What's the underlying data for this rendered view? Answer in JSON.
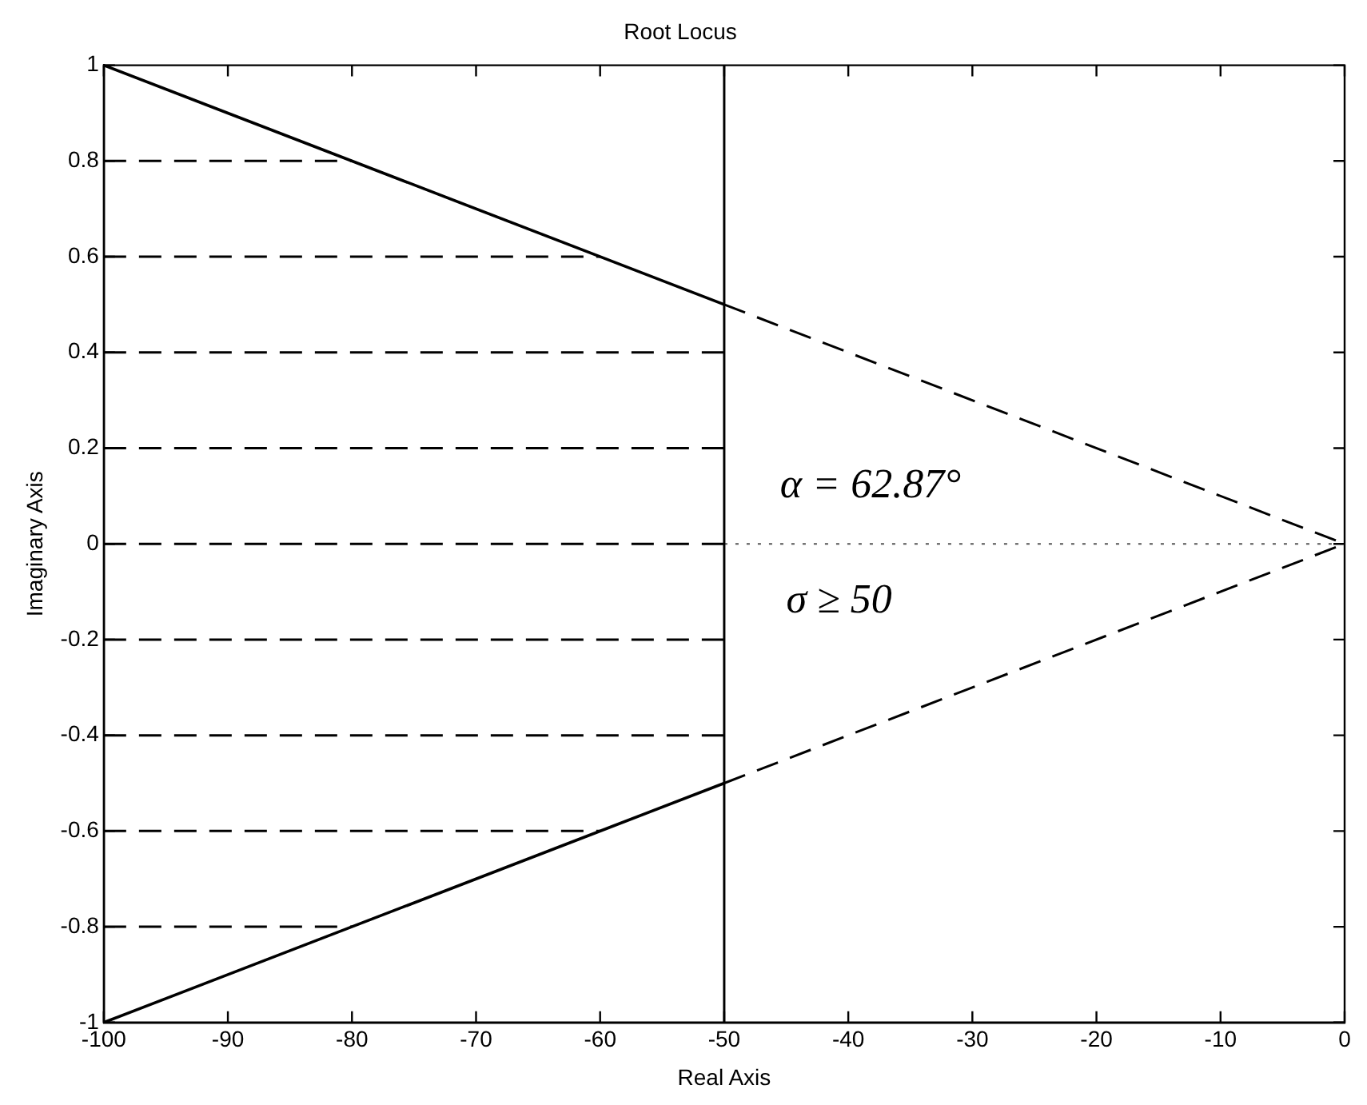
{
  "chart_data": {
    "type": "line",
    "title": "Root Locus",
    "xlabel": "Real Axis",
    "ylabel": "Imaginary Axis",
    "xlim": [
      -100,
      0
    ],
    "xticks": [
      -100,
      -90,
      -80,
      -70,
      -60,
      -50,
      -40,
      -30,
      -20,
      -10,
      0
    ],
    "ylim": [
      -1,
      1
    ],
    "yticks": [
      -1,
      -0.8,
      -0.6,
      -0.4,
      -0.2,
      0,
      0.2,
      0.4,
      0.6,
      0.8,
      1
    ],
    "grid": false,
    "legend": false,
    "marker": "none",
    "ref_lines": [
      {
        "axis": "x",
        "value": -50,
        "color": "#000000",
        "line_style": "solid"
      }
    ],
    "annotations": [
      "α = 62.87°",
      "σ ≥ 50"
    ],
    "series": [
      {
        "type": "line",
        "x": [
          -100,
          -50
        ],
        "values": [
          1,
          0.5
        ],
        "color": "#000000",
        "line_style": "solid"
      },
      {
        "type": "line",
        "x": [
          -50,
          0
        ],
        "values": [
          0.5,
          0
        ],
        "color": "#000000",
        "line_style": "dashed"
      },
      {
        "type": "line",
        "x": [
          -100,
          -50
        ],
        "values": [
          -1,
          -0.5
        ],
        "color": "#000000",
        "line_style": "solid"
      },
      {
        "type": "line",
        "x": [
          -50,
          0
        ],
        "values": [
          -0.5,
          0
        ],
        "color": "#000000",
        "line_style": "dashed"
      },
      {
        "type": "line",
        "x": [
          -100,
          -80
        ],
        "values": [
          0.8,
          0.8
        ],
        "color": "#000000",
        "line_style": "dashed"
      },
      {
        "type": "line",
        "x": [
          -100,
          -60
        ],
        "values": [
          0.6,
          0.6
        ],
        "color": "#000000",
        "line_style": "dashed"
      },
      {
        "type": "line",
        "x": [
          -100,
          -50
        ],
        "values": [
          0.4,
          0.4
        ],
        "color": "#000000",
        "line_style": "dashed"
      },
      {
        "type": "line",
        "x": [
          -100,
          -50
        ],
        "values": [
          0.2,
          0.2
        ],
        "color": "#000000",
        "line_style": "dashed"
      },
      {
        "type": "line",
        "x": [
          -100,
          -50
        ],
        "values": [
          0,
          0
        ],
        "color": "#000000",
        "line_style": "dashed"
      },
      {
        "x": [
          -50,
          0
        ],
        "values": [
          0,
          0
        ],
        "color": "#555555",
        "line_style": "dotted"
      },
      {
        "type": "line",
        "x": [
          -100,
          -50
        ],
        "values": [
          -0.2,
          -0.2
        ],
        "color": "#000000",
        "line_style": "dashed"
      },
      {
        "type": "line",
        "x": [
          -100,
          -50
        ],
        "values": [
          -0.4,
          -0.4
        ],
        "color": "#000000",
        "line_style": "dashed"
      },
      {
        "type": "line",
        "x": [
          -100,
          -60
        ],
        "values": [
          -0.6,
          -0.6
        ],
        "color": "#000000",
        "line_style": "dashed"
      },
      {
        "type": "line",
        "x": [
          -100,
          -80
        ],
        "values": [
          -0.8,
          -0.8
        ],
        "color": "#000000",
        "line_style": "dashed"
      }
    ]
  }
}
